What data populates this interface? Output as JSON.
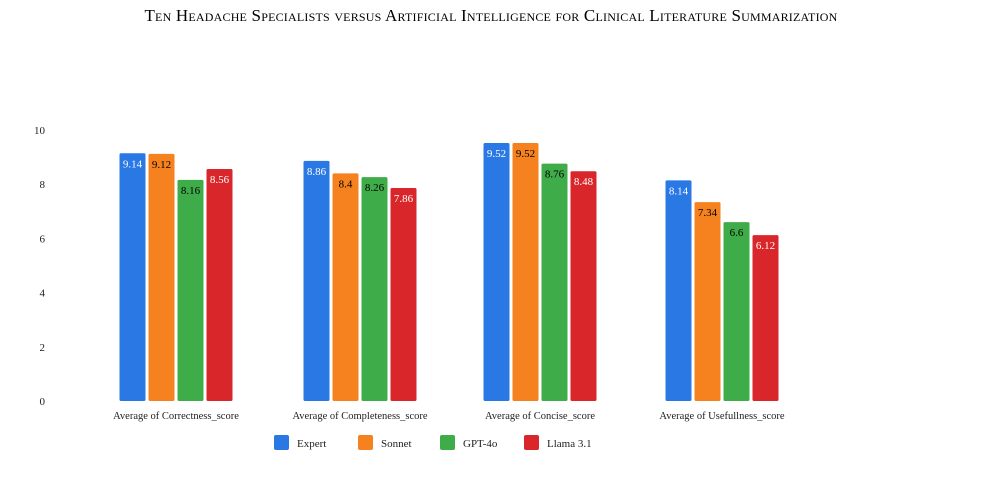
{
  "header": "Ten Headache Specialists versus Artificial Intelligence for Clinical Literature Summarization",
  "chart_data": {
    "type": "bar",
    "title": "",
    "xlabel": "",
    "ylabel": "",
    "ylim": [
      0,
      10
    ],
    "yticks": [
      0,
      2,
      4,
      6,
      8,
      10
    ],
    "grid": false,
    "legend": "bottom",
    "categories": [
      "Average of Correctness_score",
      "Average of Completeness_score",
      "Average of Concise_score",
      "Average of Usefullness_score"
    ],
    "series": [
      {
        "name": "Expert",
        "color": "#2a78e4",
        "label_color": "#ffffff",
        "values": [
          9.14,
          8.86,
          9.52,
          8.14
        ]
      },
      {
        "name": "Sonnet",
        "color": "#f5821f",
        "label_color": "#000000",
        "values": [
          9.12,
          8.4,
          9.52,
          7.34
        ]
      },
      {
        "name": "GPT-4o",
        "color": "#3fac4a",
        "label_color": "#000000",
        "values": [
          8.16,
          8.26,
          8.76,
          6.6
        ]
      },
      {
        "name": "Llama 3.1",
        "color": "#d9262a",
        "label_color": "#ffffff",
        "values": [
          8.56,
          7.86,
          8.48,
          6.12
        ]
      }
    ]
  }
}
